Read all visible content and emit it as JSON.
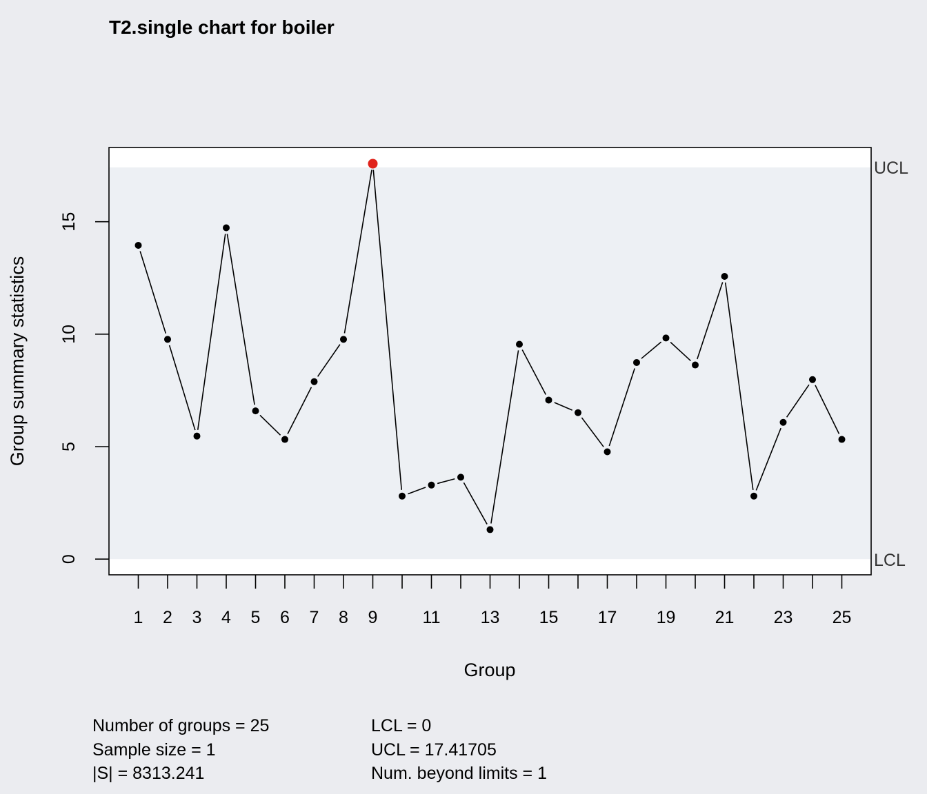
{
  "chart_data": {
    "type": "line",
    "title": "T2.single chart for boiler",
    "xlabel": "Group",
    "ylabel": "Group summary statistics",
    "x": [
      1,
      2,
      3,
      4,
      5,
      6,
      7,
      8,
      9,
      10,
      11,
      12,
      13,
      14,
      15,
      16,
      17,
      18,
      19,
      20,
      21,
      22,
      23,
      24,
      25
    ],
    "values": [
      13.95,
      9.77,
      5.47,
      14.73,
      6.59,
      5.32,
      7.89,
      9.77,
      17.58,
      2.8,
      3.29,
      3.64,
      1.31,
      9.55,
      7.07,
      6.51,
      4.77,
      8.74,
      9.83,
      8.63,
      12.57,
      2.8,
      6.08,
      7.98,
      5.32
    ],
    "xlim": [
      0,
      26
    ],
    "ylim": [
      -0.7,
      18.3
    ],
    "x_ticks": [
      1,
      2,
      3,
      4,
      5,
      6,
      7,
      8,
      9,
      10,
      11,
      12,
      13,
      14,
      15,
      16,
      17,
      18,
      19,
      20,
      21,
      22,
      23,
      24,
      25
    ],
    "x_tick_labels": [
      "1",
      "2",
      "3",
      "4",
      "5",
      "6",
      "7",
      "8",
      "9",
      "",
      "11",
      "",
      "13",
      "",
      "15",
      "",
      "17",
      "",
      "19",
      "",
      "21",
      "",
      "23",
      "",
      "25"
    ],
    "y_ticks": [
      0,
      5,
      10,
      15
    ],
    "y_tick_labels": [
      "0",
      "5",
      "10",
      "15"
    ],
    "limits": {
      "lcl": 0,
      "ucl": 17.41705,
      "lcl_label": "LCL",
      "ucl_label": "UCL"
    },
    "beyond_limit_points": [
      9
    ],
    "grid": false,
    "colors": {
      "background": "#EBECF0",
      "in_control_band": "#EDF0F4",
      "out_of_band": "#FFFFFF",
      "point": "#000000",
      "violation_point": "#E0231B",
      "line": "#000000"
    }
  },
  "stats": {
    "left": [
      "Number of groups = 25",
      "Sample size = 1",
      "|S| = 8313.241"
    ],
    "right": [
      "LCL = 0",
      "UCL = 17.41705",
      "Num. beyond limits = 1"
    ]
  }
}
